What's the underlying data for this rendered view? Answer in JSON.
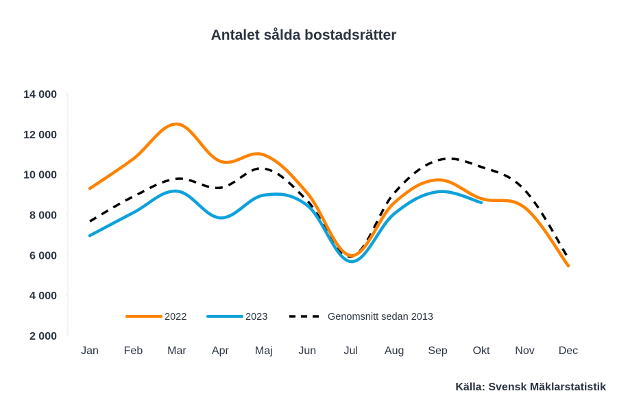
{
  "chart_data": {
    "type": "line",
    "title": "Antalet sålda bostadsrätter",
    "xlabel": "",
    "ylabel": "",
    "categories": [
      "Jan",
      "Feb",
      "Mar",
      "Apr",
      "Maj",
      "Jun",
      "Jul",
      "Aug",
      "Sep",
      "Okt",
      "Nov",
      "Dec"
    ],
    "ylim": [
      2000,
      14000
    ],
    "yticks": [
      2000,
      4000,
      6000,
      8000,
      10000,
      12000,
      14000
    ],
    "ytick_labels": [
      "2 000",
      "4 000",
      "6 000",
      "8 000",
      "10 000",
      "12 000",
      "14 000"
    ],
    "grid": false,
    "legend_position": "bottom-inside",
    "series": [
      {
        "name": "2022",
        "color": "#ff8200",
        "style": "solid",
        "values": [
          9300,
          10770,
          12500,
          10650,
          10970,
          9070,
          5970,
          8600,
          9730,
          8800,
          8350,
          5460
        ]
      },
      {
        "name": "2023",
        "color": "#0ea1dc",
        "style": "solid",
        "values": [
          6960,
          8100,
          9170,
          7840,
          8970,
          8460,
          5670,
          8050,
          9140,
          8600,
          null,
          null
        ]
      },
      {
        "name": "Genomsnitt sedan 2013",
        "color": "#000000",
        "style": "dashed",
        "values": [
          7670,
          8900,
          9780,
          9340,
          10290,
          8690,
          5920,
          9080,
          10700,
          10370,
          9220,
          5840
        ]
      }
    ],
    "source": "Källa: Svensk Mäklarstatistik"
  }
}
